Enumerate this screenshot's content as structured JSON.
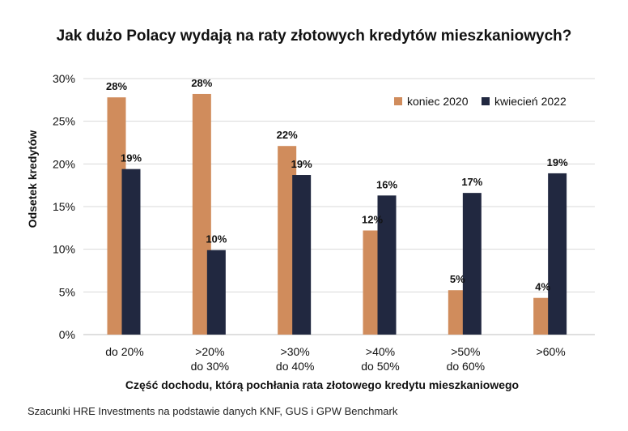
{
  "chart_data": {
    "type": "bar",
    "title": "Jak dużo Polacy wydają na raty złotowych kredytów mieszkaniowych?",
    "xlabel": "Część dochodu, którą pochłania rata złotowego kredytu mieszkaniowego",
    "ylabel": "Odsetek kredytów",
    "ylim": [
      0,
      30
    ],
    "yticks": [
      "0%",
      "5%",
      "10%",
      "15%",
      "20%",
      "25%",
      "30%"
    ],
    "grid": true,
    "legend_position": "top-right",
    "categories": [
      [
        "do 20%"
      ],
      [
        ">20%",
        "do 30%"
      ],
      [
        ">30%",
        "do 40%"
      ],
      [
        ">40%",
        "do 50%"
      ],
      [
        ">50%",
        "do 60%"
      ],
      [
        ">60%"
      ]
    ],
    "series": [
      {
        "name": "koniec 2020",
        "color": "#D08C5C",
        "values": [
          27.8,
          28.2,
          22.1,
          12.2,
          5.2,
          4.3
        ],
        "labels": [
          "28%",
          "28%",
          "22%",
          "12%",
          "5%",
          "4%"
        ]
      },
      {
        "name": "kwiecień 2022",
        "color": "#212840",
        "values": [
          19.4,
          9.9,
          18.7,
          16.3,
          16.6,
          18.9
        ],
        "labels": [
          "19%",
          "10%",
          "19%",
          "16%",
          "17%",
          "19%"
        ]
      }
    ]
  },
  "source_note": "Szacunki HRE Investments na podstawie danych KNF, GUS i GPW Benchmark"
}
